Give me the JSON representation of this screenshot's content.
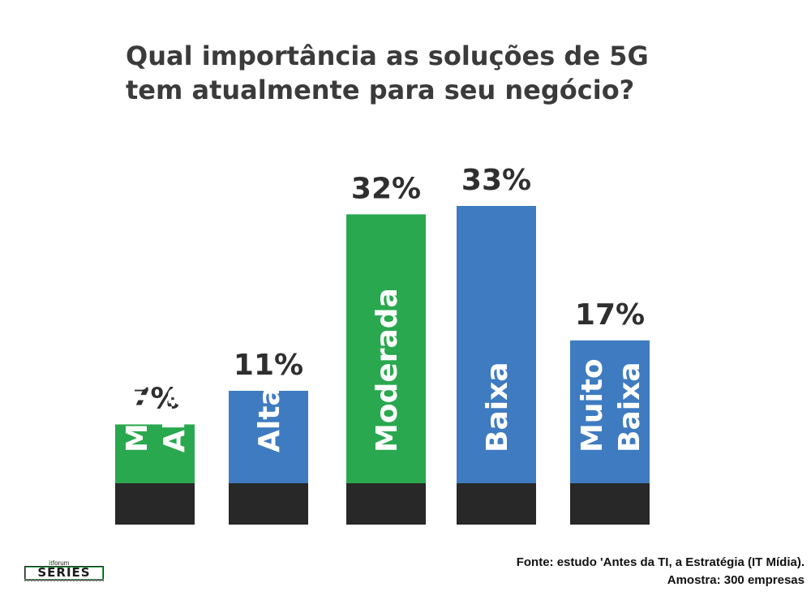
{
  "title": {
    "line1": "Qual importância as soluções de 5G",
    "line2": "tem atualmente para seu negócio?"
  },
  "chart_data": {
    "type": "bar",
    "title": "Qual importância as soluções de 5G tem atualmente para seu negócio?",
    "categories": [
      [
        "Muito",
        "Alta"
      ],
      [
        "Alta"
      ],
      [
        "Moderada"
      ],
      [
        "Baixa"
      ],
      [
        "Muito",
        "Baixa"
      ]
    ],
    "values": [
      7,
      11,
      32,
      33,
      17
    ],
    "value_labels": [
      "7%",
      "11%",
      "32%",
      "33%",
      "17%"
    ],
    "bar_colors": [
      "#2aa84f",
      "#3f7bc1",
      "#2aa84f",
      "#3f7bc1",
      "#3f7bc1"
    ],
    "base_color": "#282828",
    "ylim": [
      0,
      33
    ],
    "grid": false,
    "legend": "none",
    "xlabel": "",
    "ylabel": ""
  },
  "source": {
    "line1": "Fonte: estudo 'Antes da TI, a Estratégia (IT Mídia).",
    "line2": "Amostra: 300 empresas"
  },
  "logo": {
    "prefix_it": "it",
    "prefix_forum": "forum",
    "word": "SERIES"
  }
}
